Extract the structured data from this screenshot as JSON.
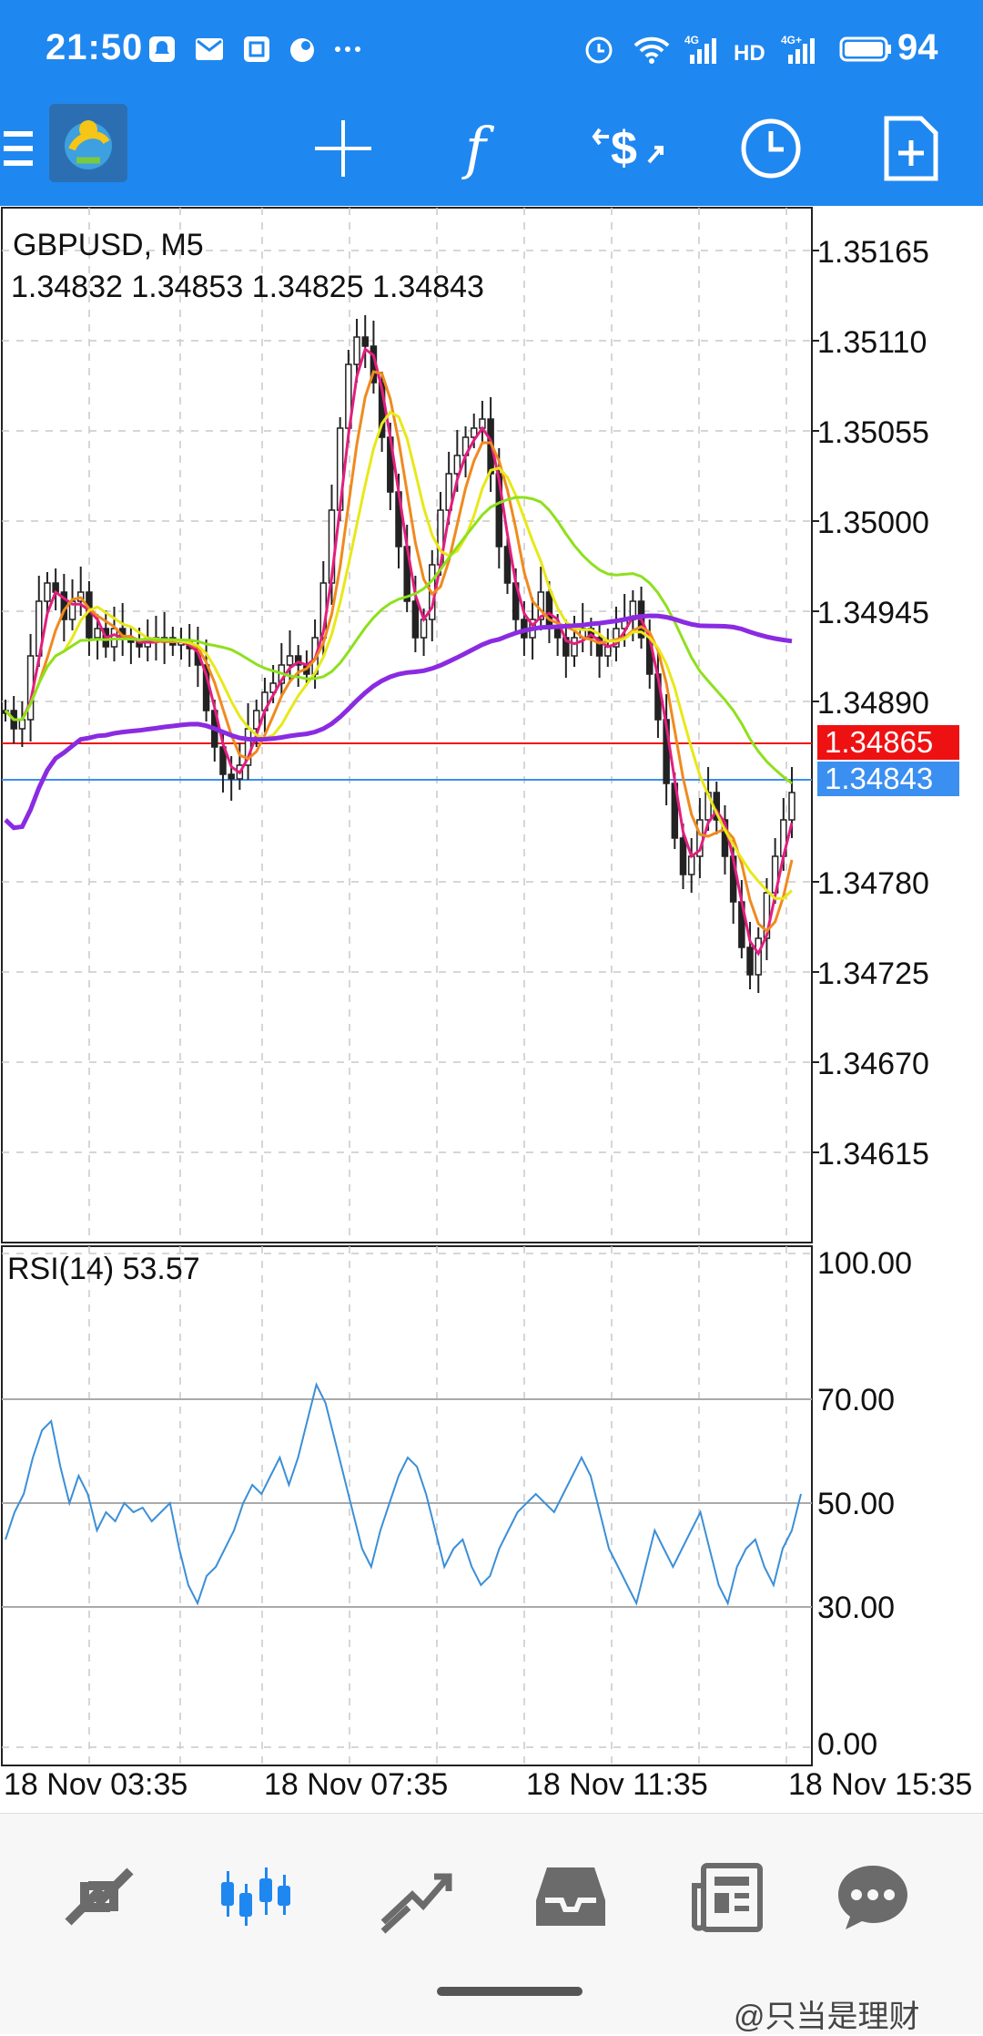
{
  "status_bar": {
    "time": "21:50",
    "battery": "94",
    "left_icons": [
      "notification-icon",
      "mail-icon",
      "app-icon",
      "cloud-icon",
      "more-icon"
    ],
    "right_icons": [
      "alarm-icon",
      "wifi-icon",
      "signal-4g-icon",
      "hd-icon",
      "signal-4g-plus-icon",
      "battery-icon"
    ]
  },
  "toolbar": {
    "icons": [
      "menu-icon",
      "app-logo",
      "crosshair-icon",
      "function-icon",
      "trade-icon",
      "clock-icon",
      "new-order-icon"
    ]
  },
  "chart": {
    "symbol_title": "GBPUSD, M5",
    "ohlc": "1.34832 1.34853 1.34825 1.34843",
    "price_ticks": [
      "1.35165",
      "1.35110",
      "1.35055",
      "1.35000",
      "1.34945",
      "1.34890",
      "1.34780",
      "1.34725",
      "1.34670",
      "1.34615"
    ],
    "ask_price": "1.34865",
    "bid_price": "1.34843",
    "ask_color": "#ee1111",
    "bid_color": "#3b8ff0",
    "rsi_title": "RSI(14) 53.57",
    "rsi_ticks": [
      "100.00",
      "70.00",
      "50.00",
      "30.00",
      "0.00"
    ],
    "time_labels": [
      "18 Nov 03:35",
      "18 Nov 07:35",
      "18 Nov 11:35",
      "18 Nov 15:35"
    ],
    "ma_colors": [
      "#e21e7e",
      "#f08a1e",
      "#e8e81a",
      "#8ee01e",
      "#8a2be2"
    ],
    "rsi_color": "#3b8fd8"
  },
  "bottom_nav": {
    "items": [
      {
        "name": "quotes-tab",
        "icon": "arrows-icon",
        "active": false
      },
      {
        "name": "chart-tab",
        "icon": "candles-icon",
        "active": true
      },
      {
        "name": "trade-tab",
        "icon": "trend-icon",
        "active": false
      },
      {
        "name": "history-tab",
        "icon": "inbox-icon",
        "active": false
      },
      {
        "name": "news-tab",
        "icon": "news-icon",
        "active": false
      },
      {
        "name": "chat-tab",
        "icon": "chat-icon",
        "active": false
      }
    ]
  },
  "watermark": "@只当是理财"
}
